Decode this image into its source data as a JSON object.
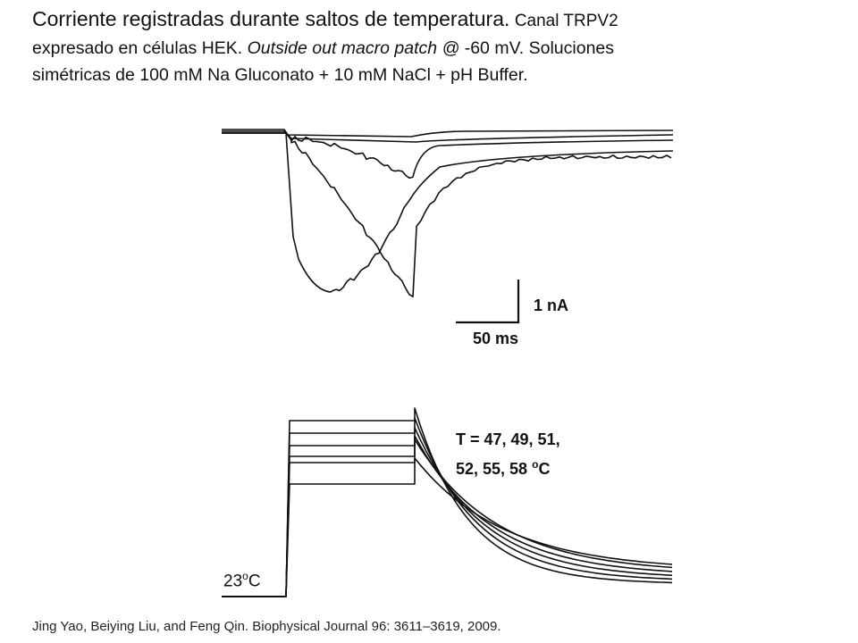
{
  "title": {
    "heading": "Corriente registradas durante saltos de temperatura.",
    "subtitle_first": "Canal TRPV2",
    "line2_a": "expresado en células HEK.",
    "line2_italic": "Outside out macro patch @",
    "line2_b": "-60 mV. Soluciones",
    "line3": "simétricas de 100 mM Na Gluconato + 10 mM NaCl + pH Buffer."
  },
  "figure": {
    "current_scale": "1 nA",
    "time_scale": "50 ms",
    "temperature_line1": "T = 47, 49, 51,",
    "temperature_line2": "52, 55, 58",
    "temperature_unit": "C",
    "baseline_temp": "23",
    "baseline_unit": "C",
    "degree_symbol": "o"
  },
  "citation": "Jing Yao, Beiying Liu, and Feng Qin. Biophysical Journal 96: 3611–3619, 2009.",
  "colors": {
    "trace": "#111111"
  }
}
